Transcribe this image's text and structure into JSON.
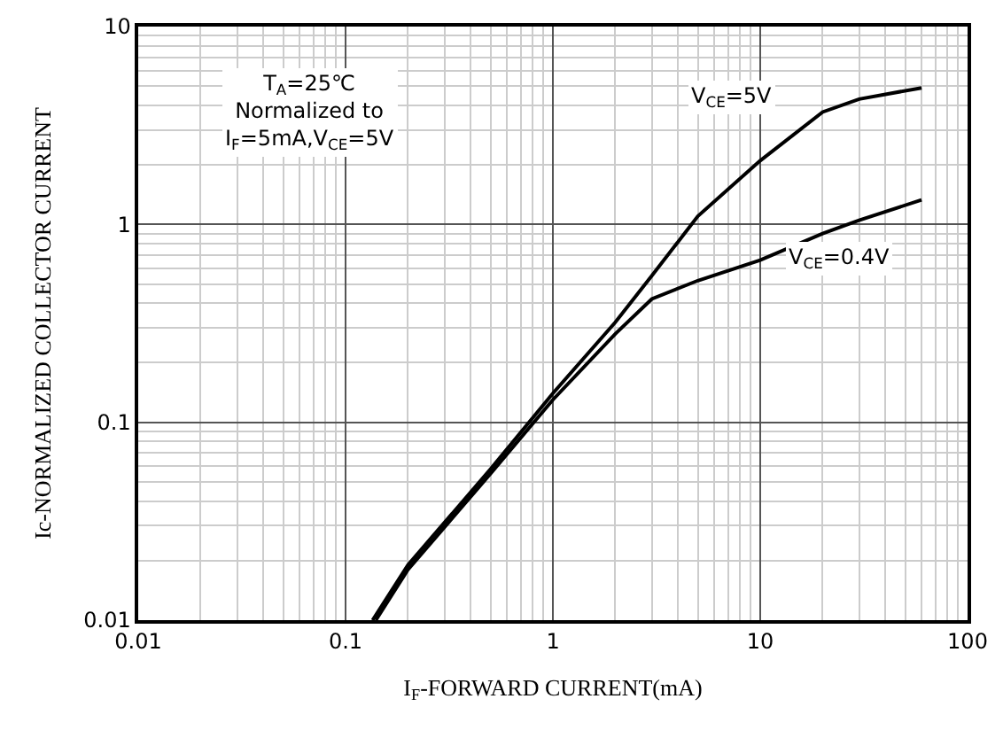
{
  "chart_data": {
    "type": "line",
    "xlabel": "I$_{F}$-FORWARD CURRENT(mA)",
    "ylabel": "Ic-NORMALIZED COLLECTOR CURRENT",
    "log": "xy",
    "grid": true,
    "legend": false,
    "line_style": "solid",
    "marker": "none",
    "xlim": [
      0.01,
      100
    ],
    "xticks": [
      0.01,
      0.1,
      1,
      10,
      100
    ],
    "ylim": [
      0.01,
      10
    ],
    "yticks": [
      0.01,
      0.1,
      1,
      10
    ],
    "series": [
      {
        "name": "V$_{CE}$=5V",
        "color": "#000000",
        "x": [
          0.135,
          0.2,
          0.5,
          1,
          2,
          3,
          5,
          10,
          20,
          30,
          60
        ],
        "values": [
          0.01,
          0.019,
          0.058,
          0.14,
          0.32,
          0.55,
          1.1,
          2.1,
          3.7,
          4.3,
          4.9
        ]
      },
      {
        "name": "V$_{CE}$=0.4V",
        "color": "#000000",
        "x": [
          0.14,
          0.2,
          0.5,
          1,
          2,
          3,
          5,
          10,
          20,
          30,
          60
        ],
        "values": [
          0.01,
          0.018,
          0.055,
          0.13,
          0.28,
          0.42,
          0.52,
          0.66,
          0.9,
          1.05,
          1.33
        ]
      }
    ],
    "annotations": [
      "T$_{A}$=25℃\nNormalized to\nI$_{F}$=5mA,V$_{CE}$=5V"
    ]
  }
}
